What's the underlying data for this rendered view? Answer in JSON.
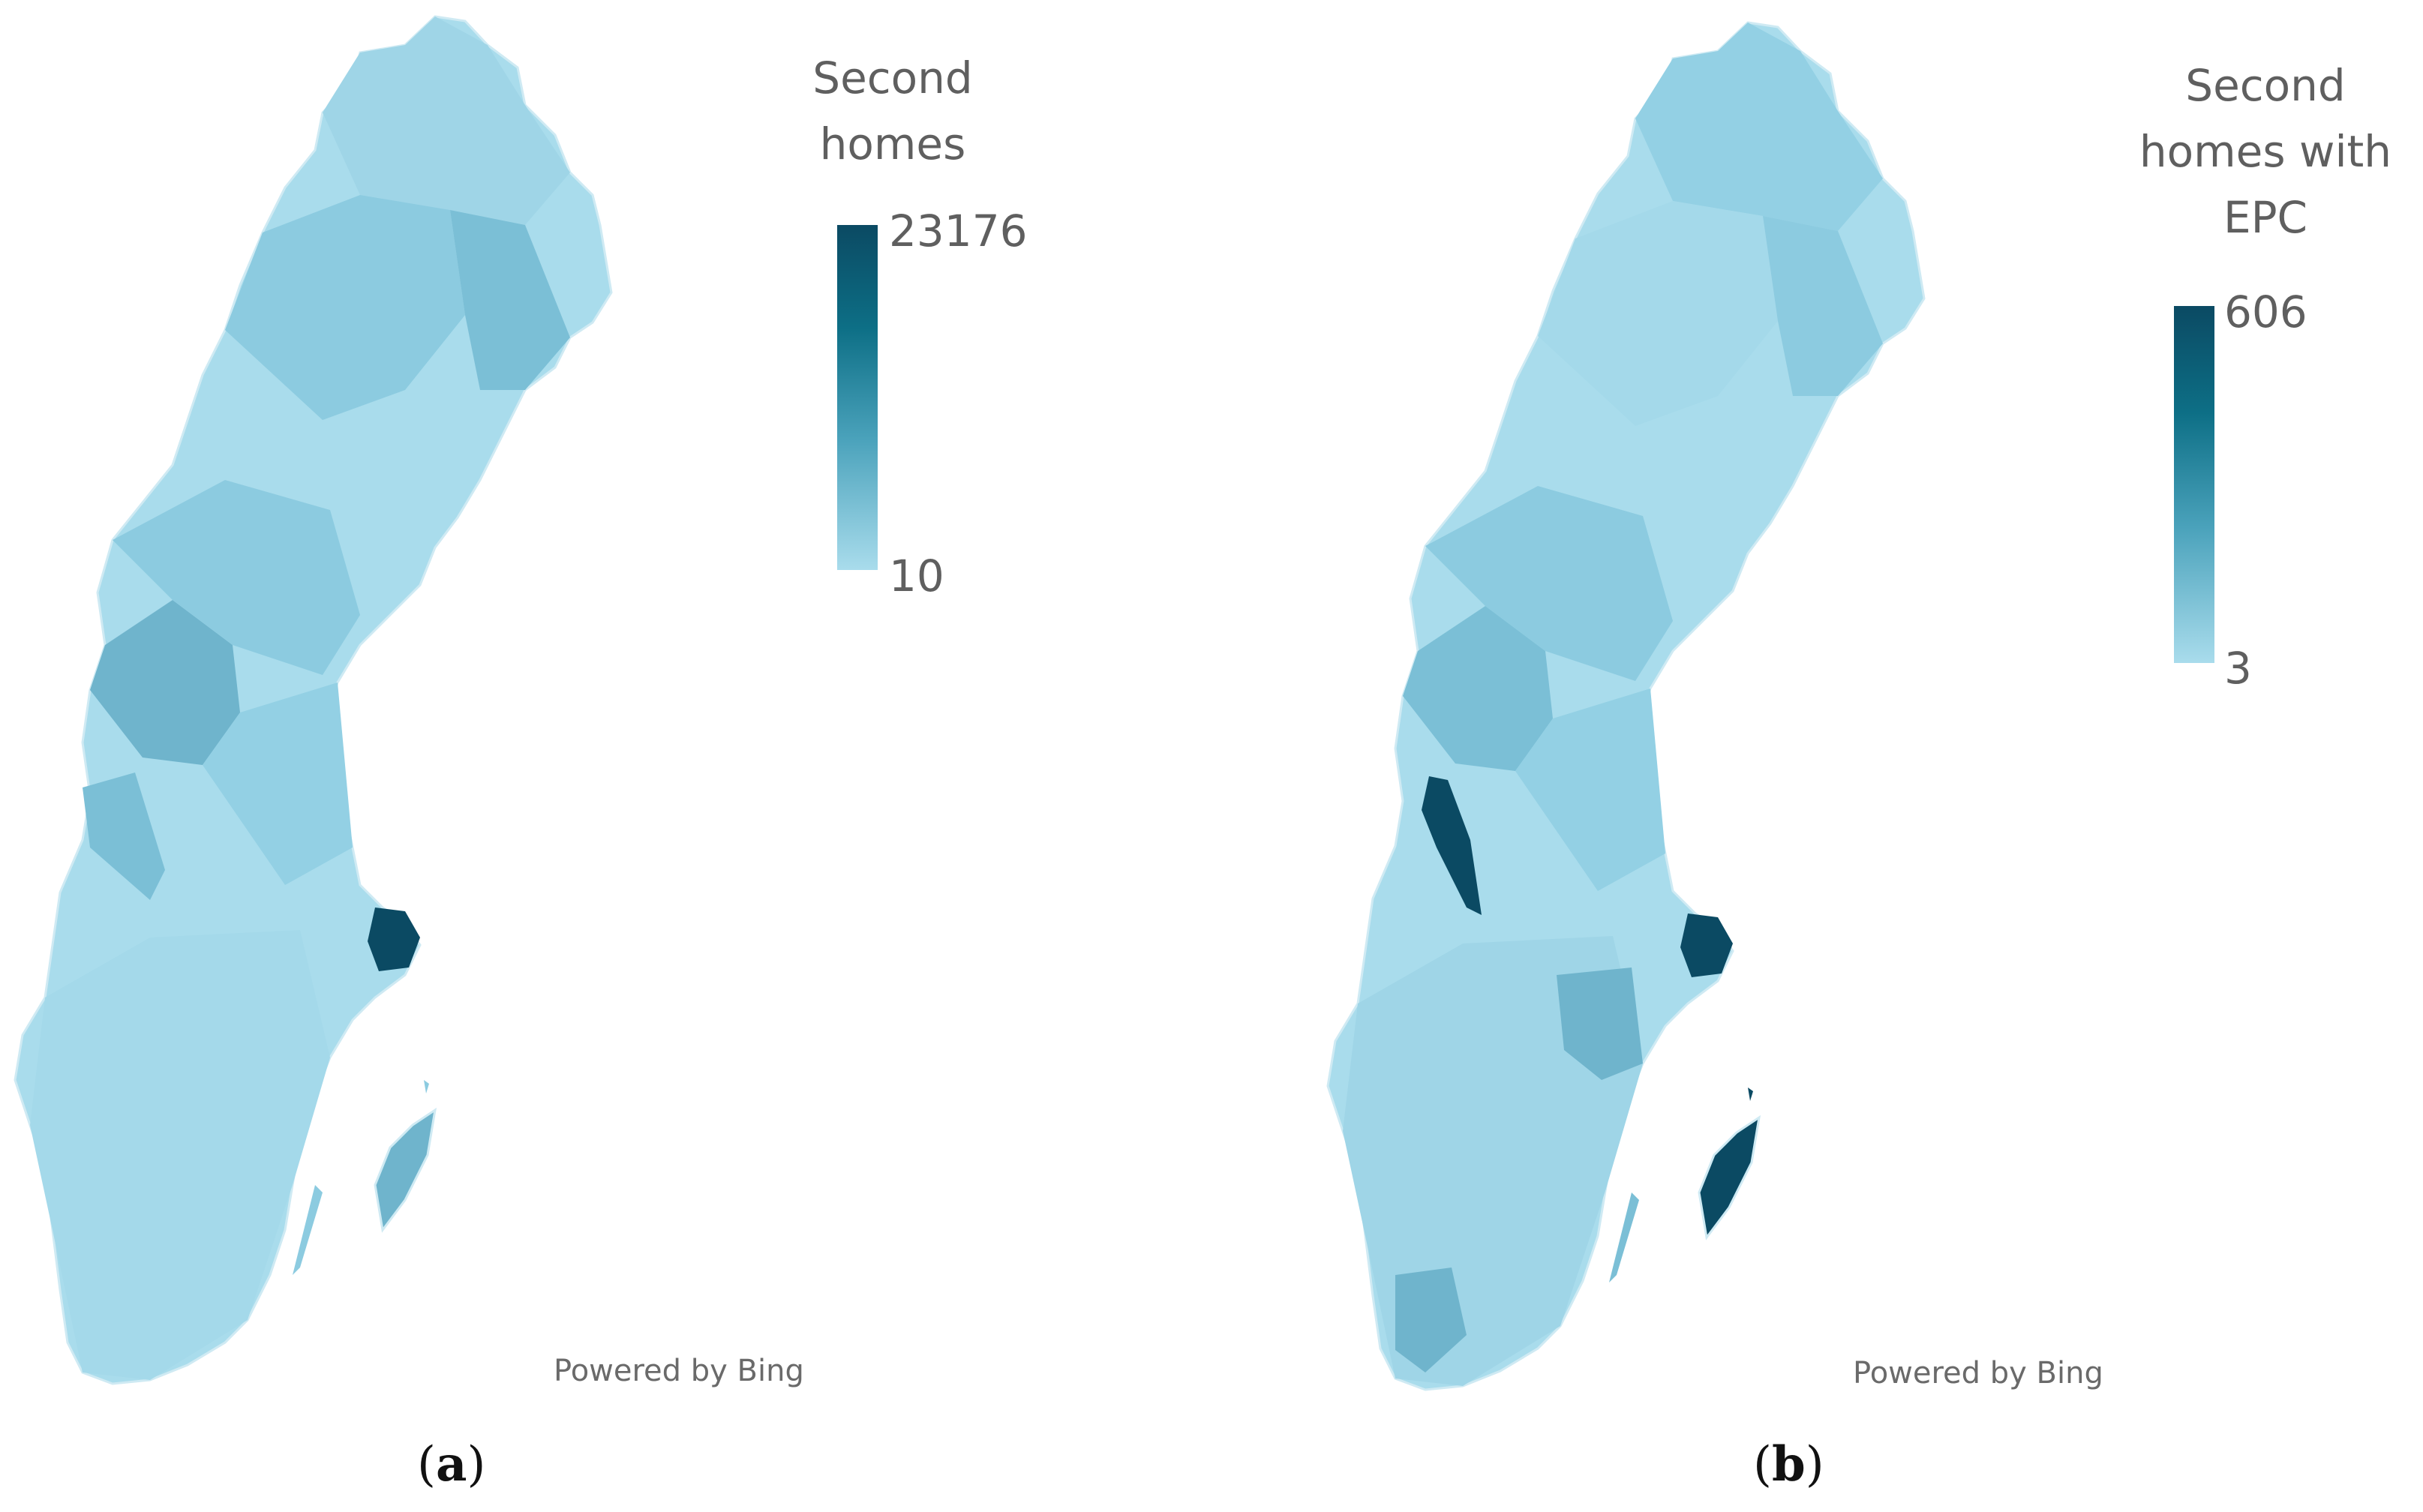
{
  "panels": [
    {
      "id": "a",
      "legend": {
        "title": "Second\nhomes",
        "max": "23176",
        "min": "10"
      },
      "credit": "Powered by Bing",
      "caption": {
        "open": "(",
        "letter": "a",
        "close": ")"
      }
    },
    {
      "id": "b",
      "legend": {
        "title": "Second\nhomes with\nEPC",
        "max": "606",
        "min": "3"
      },
      "credit": "Powered by Bing",
      "caption": {
        "open": "(",
        "letter": "b",
        "close": ")"
      }
    }
  ],
  "colors": {
    "light": "#a9dcec",
    "mid_light": "#8ccbe0",
    "mid": "#6fb4cc",
    "mid_dark": "#4f9fb8",
    "dark": "#0b4a63",
    "border": "#d6eef6"
  }
}
